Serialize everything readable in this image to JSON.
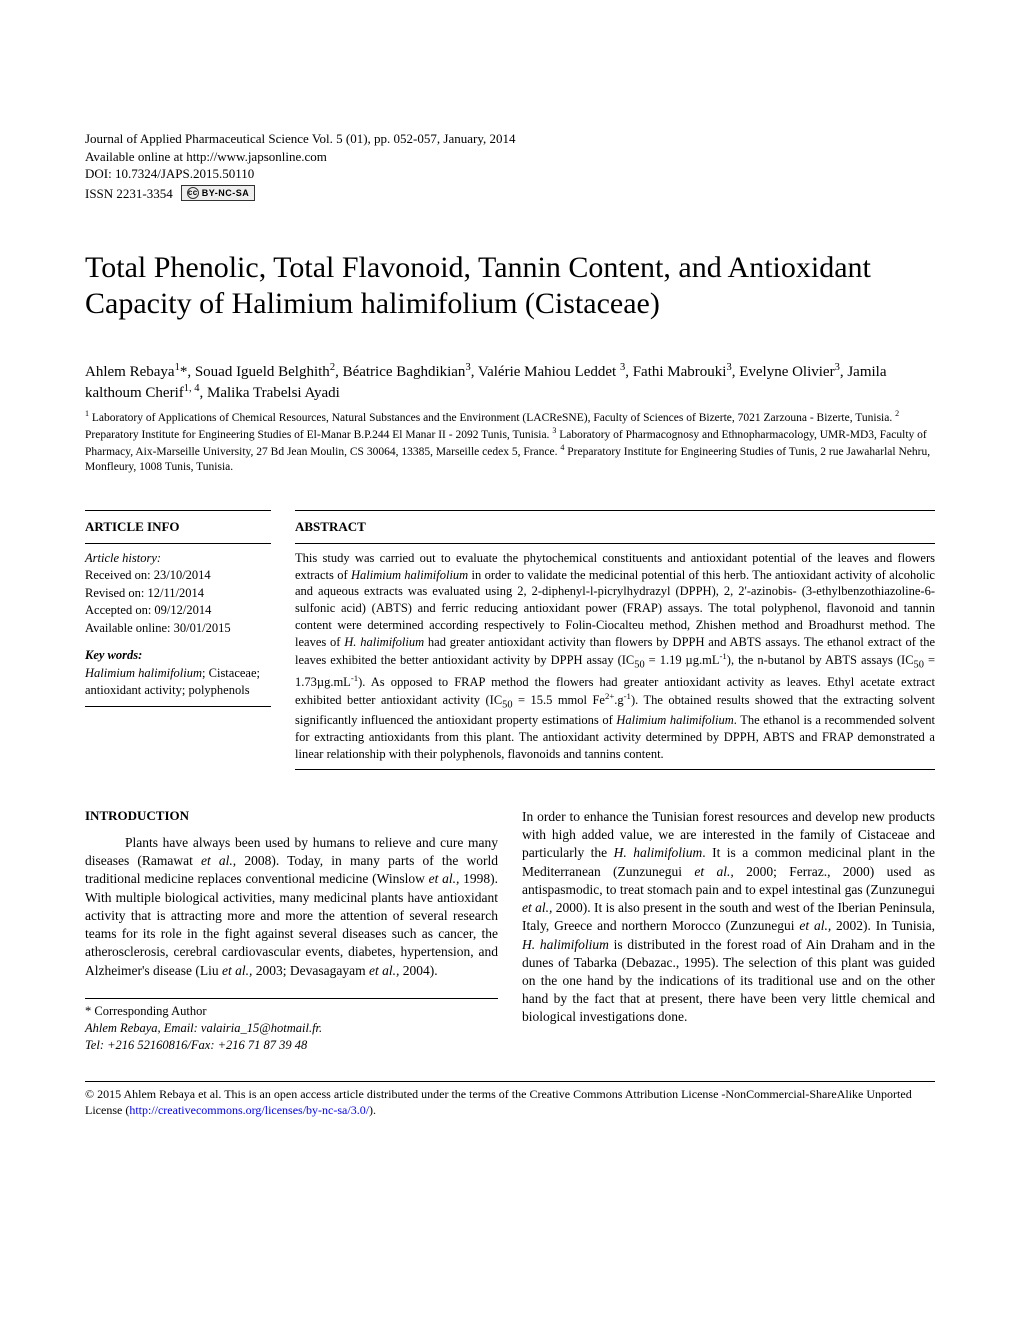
{
  "journal": {
    "line1": "Journal of Applied Pharmaceutical Science Vol. 5 (01), pp. 052-057, January, 2014",
    "line2": "Available online at http://www.japsonline.com",
    "doi": "DOI: 10.7324/JAPS.2015.50110",
    "issn": "ISSN 2231-3354",
    "cc_text": "BY-NC-SA"
  },
  "title": "Total Phenolic, Total Flavonoid, Tannin Content, and Antioxidant Capacity of Halimium halimifolium (Cistaceae)",
  "authors_html": "Ahlem Rebaya<sup>1</sup>*,  Souad Igueld Belghith<sup>2</sup>, Béatrice Baghdikian<sup>3</sup>, Valérie Mahiou Leddet <sup>3</sup>, Fathi Mabrouki<sup>3</sup>, Evelyne Olivier<sup>3</sup>, Jamila kalthoum Cherif<sup>1, 4</sup>, Malika Trabelsi Ayadi",
  "affiliations_html": "<sup>1</sup> Laboratory of Applications of Chemical Resources, Natural Substances and the Environment (LACReSNE), Faculty of Sciences of Bizerte, 7021 Zarzouna - Bizerte, Tunisia. <sup>2</sup> Preparatory Institute for Engineering Studies of El-Manar B.P.244 El Manar II - 2092 Tunis, Tunisia. <sup>3</sup> Laboratory of Pharmacognosy and Ethnopharmacology, UMR-MD3, Faculty of Pharmacy, Aix-Marseille University, 27 Bd Jean Moulin, CS 30064, 13385, Marseille cedex 5,  France. <sup>4</sup> Preparatory Institute for Engineering Studies of Tunis, 2 rue Jawaharlal Nehru, Monfleury,  1008 Tunis, Tunisia.",
  "article_info": {
    "heading": "ARTICLE INFO",
    "history_label": "Article history:",
    "received": "Received on: 23/10/2014",
    "revised": "Revised on: 12/11/2014",
    "accepted": "Accepted on: 09/12/2014",
    "available": "Available online: 30/01/2015",
    "keywords_label": "Key words:",
    "keywords_html": "<span class=\"italic\">Halimium halimifolium</span>; Cistaceae; antioxidant activity; polyphenols"
  },
  "abstract": {
    "heading": "ABSTRACT",
    "text_html": "This study was carried out to evaluate the phytochemical constituents and antioxidant potential of the leaves and flowers extracts of <span class=\"italic\">Halimium halimifolium</span> in order to validate the medicinal potential of this herb. The antioxidant activity of alcoholic and aqueous extracts was evaluated using 2, 2-diphenyl-l-picrylhydrazyl (DPPH), 2, 2'-azinobis- (3-ethylbenzothiazoline-6-sulfonic acid) (ABTS) and ferric reducing antioxidant power (FRAP) assays. The total polyphenol, flavonoid and tannin content were determined according respectively to Folin-Ciocalteu method, Zhishen method and Broadhurst method. The leaves of <span class=\"italic\">H. halimifolium</span> had greater antioxidant activity than flowers by DPPH and ABTS assays. The ethanol extract of the leaves exhibited the better antioxidant activity by DPPH assay (IC<sub>50</sub> = 1.19 µg.mL<sup>-1</sup>), the n-butanol by ABTS assays (IC<sub>50</sub> = 1.73µg.mL<sup>-1</sup>). As opposed to FRAP method the flowers had greater antioxidant activity as leaves. Ethyl acetate extract exhibited better antioxidant activity (IC<sub>50</sub> = 15.5 mmol Fe<sup>2+</sup>.g<sup>-1</sup>). The obtained results showed that the extracting solvent significantly influenced the antioxidant property estimations of <span class=\"italic\">Halimium halimifolium</span>. The ethanol is a recommended solvent for extracting antioxidants from this plant. The antioxidant activity determined by DPPH, ABTS and FRAP demonstrated a linear relationship with their polyphenols, flavonoids and tannins content."
  },
  "introduction": {
    "heading": "INTRODUCTION",
    "col1_html": "Plants have always been used by humans to relieve and cure many diseases (Ramawat <span class=\"italic\">et al.,</span> 2008). Today, in many parts of the world traditional medicine replaces conventional medicine (Winslow <span class=\"italic\">et al.,</span> 1998). With multiple biological activities, many medicinal plants have antioxidant activity that is attracting  more and more the attention of several research teams for its role in the fight against several diseases such as cancer, the atherosclerosis, cerebral cardiovascular events, diabetes, hypertension, and Alzheimer's disease (Liu <span class=\"italic\">et al.,</span> 2003; Devasagayam <span class=\"italic\">et al.,</span> 2004).",
    "col2_html": "In order to enhance the Tunisian forest resources and develop new products with high added value, we are interested in the family of Cistaceae and particularly the <span class=\"italic\">H. halimifolium</span>. It is a common medicinal plant in the Mediterranean (Zunzunegui <span class=\"italic\">et al.,</span> 2000; Ferraz., 2000) used as antispasmodic, to treat stomach pain and to expel intestinal gas (Zunzunegui <span class=\"italic\">et al.,</span> 2000). It is also present in the south and west of the Iberian Peninsula, Italy, Greece and northern Morocco (Zunzunegui <span class=\"italic\">et al.,</span> 2002).  In Tunisia, <span class=\"italic\">H. halimifolium</span> is distributed in the forest road of Ain Draham and in the dunes of Tabarka (Debazac., 1995). The selection of this plant was guided on the one hand by the indications of its traditional use and on the other hand by the fact that at present, there have been very little chemical and biological investigations done."
  },
  "corresponding": {
    "label": "* Corresponding Author",
    "line1": "Ahlem Rebaya, Email: valairia_15@hotmail.fr.",
    "line2": "Tel: +216 52160816/Fax:  +216 71 87 39 48"
  },
  "footer": {
    "text": "© 2015 Ahlem Rebaya et al. This is an open access article distributed under the terms of the Creative Commons Attribution License -NonCommercial-ShareAlike Unported License (",
    "link_text": "http://creativecommons.org/licenses/by-nc-sa/3.0/",
    "suffix": ")."
  }
}
